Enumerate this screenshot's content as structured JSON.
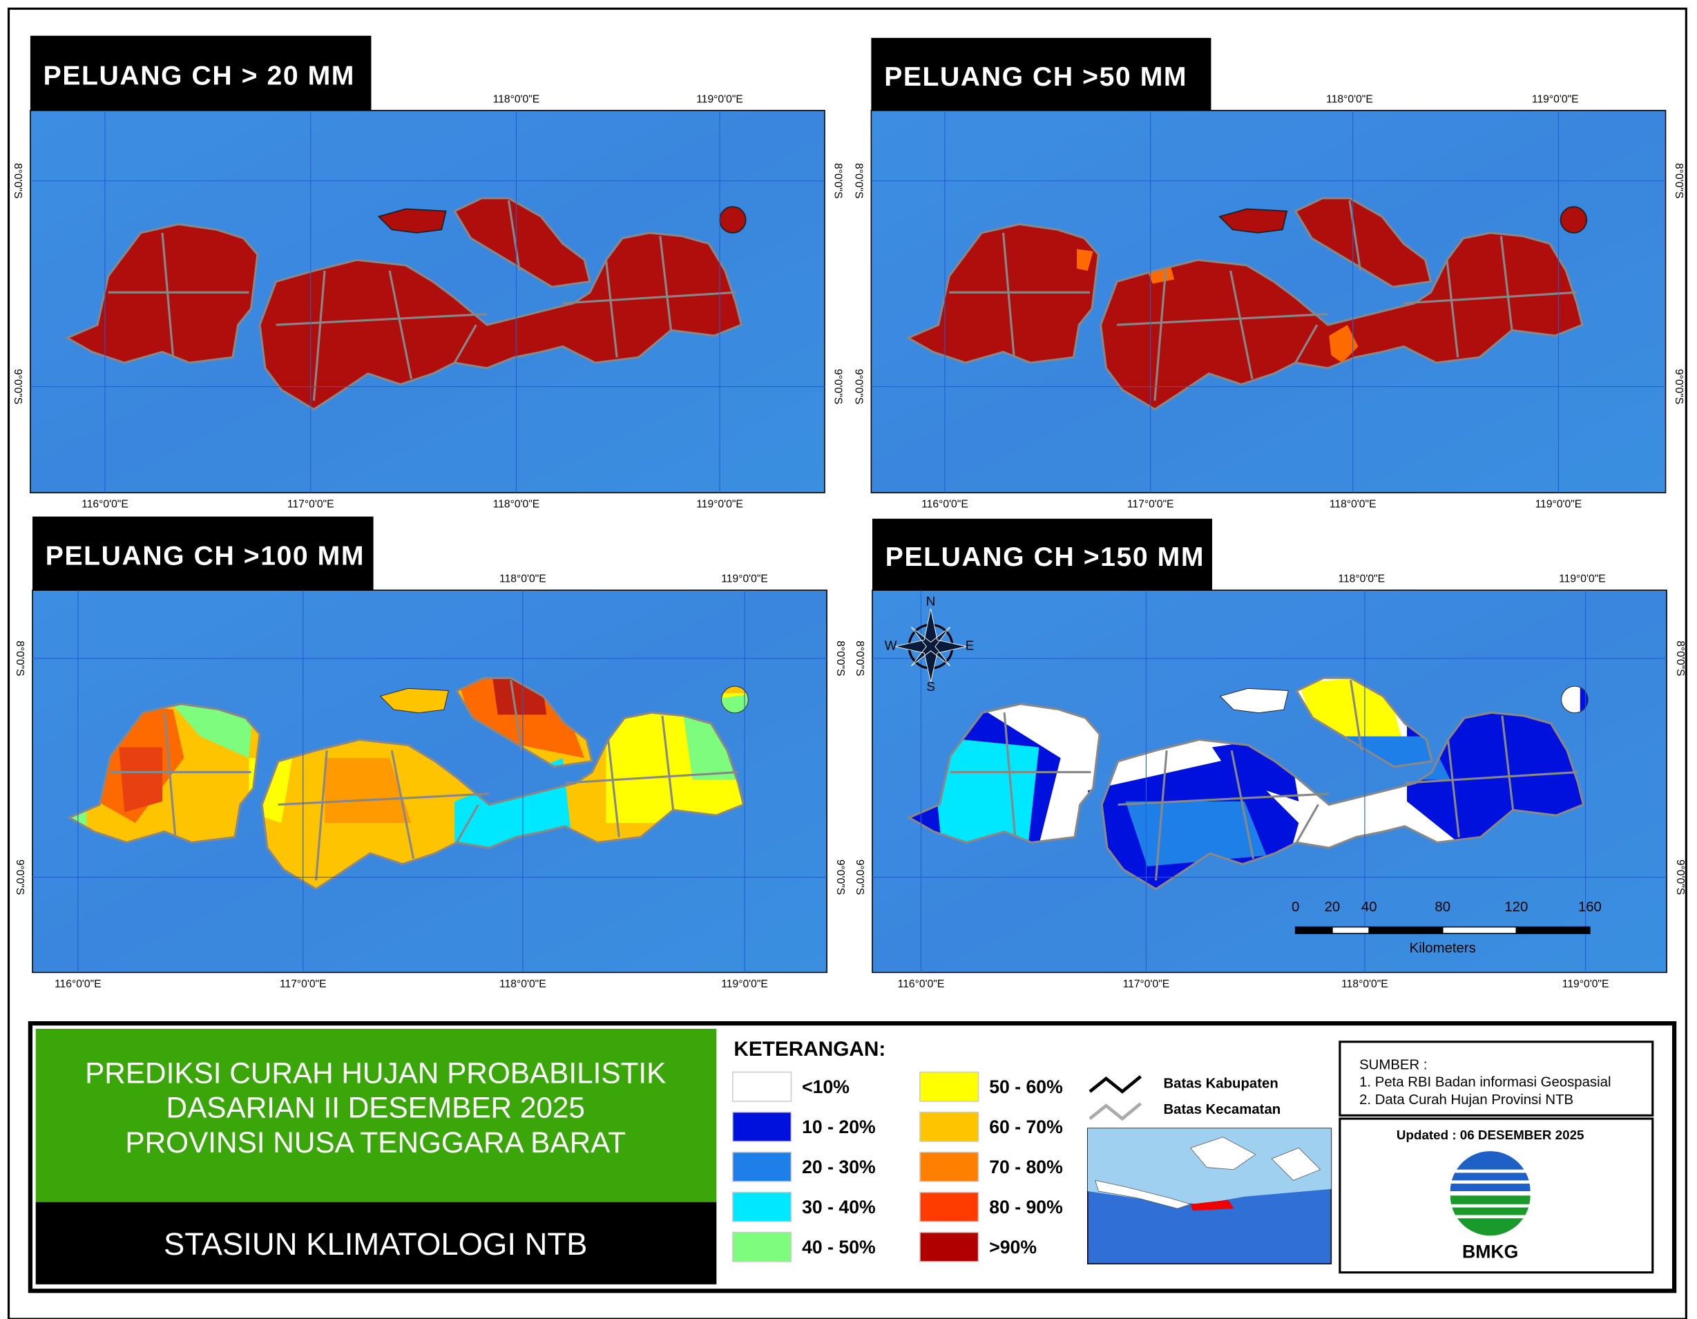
{
  "panels": [
    {
      "title": "PELUANG CH > 20 MM",
      "lon_top": [
        "118°0'0\"E",
        "119°0'0\"E"
      ],
      "lon_bottom": [
        "116°0'0\"E",
        "117°0'0\"E",
        "118°0'0\"E",
        "119°0'0\"E"
      ],
      "lat": [
        "8°0'0\"S",
        "9°0'0\"S"
      ]
    },
    {
      "title": "PELUANG CH >50 MM",
      "lon_top": [
        "118°0'0\"E",
        "119°0'0\"E"
      ],
      "lon_bottom": [
        "116°0'0\"E",
        "117°0'0\"E",
        "118°0'0\"E",
        "119°0'0\"E"
      ],
      "lat": [
        "8°0'0\"S",
        "9°0'0\"S"
      ]
    },
    {
      "title": "PELUANG CH >100 MM",
      "lon_top": [
        "118°0'0\"E",
        "119°0'0\"E"
      ],
      "lon_bottom": [
        "116°0'0\"E",
        "117°0'0\"E",
        "118°0'0\"E",
        "119°0'0\"E"
      ],
      "lat": [
        "8°0'0\"S",
        "9°0'0\"S"
      ]
    },
    {
      "title": "PELUANG CH >150 MM",
      "lon_top": [
        "118°0'0\"E",
        "119°0'0\"E"
      ],
      "lon_bottom": [
        "116°0'0\"E",
        "117°0'0\"E",
        "118°0'0\"E",
        "119°0'0\"E"
      ],
      "lat": [
        "8°0'0\"S",
        "9°0'0\"S"
      ]
    }
  ],
  "compass": {
    "n": "N",
    "s": "S",
    "w": "W",
    "e": "E"
  },
  "scale_bar": {
    "ticks": [
      0,
      20,
      40,
      80,
      120,
      160
    ],
    "unit": "Kilometers"
  },
  "title_block": {
    "lines": [
      "PREDIKSI CURAH HUJAN PROBABILISTIK",
      "DASARIAN  II DESEMBER 2025",
      "PROVINSI NUSA TENGGARA BARAT"
    ],
    "station": "STASIUN KLIMATOLOGI NTB"
  },
  "legend": {
    "title": "KETERANGAN:",
    "items": [
      {
        "label": "<10%",
        "color": "#ffffff"
      },
      {
        "label": "10 - 20%",
        "color": "#0010dd"
      },
      {
        "label": "20 - 30%",
        "color": "#1e7fe8"
      },
      {
        "label": "30 - 40%",
        "color": "#00e8ff"
      },
      {
        "label": "40 - 50%",
        "color": "#7dfc7d"
      },
      {
        "label": "50 - 60%",
        "color": "#ffff00"
      },
      {
        "label": "60 - 70%",
        "color": "#ffc400"
      },
      {
        "label": "70 - 80%",
        "color": "#ff7f00"
      },
      {
        "label": "80 - 90%",
        "color": "#ff3c00"
      },
      {
        "label": ">90%",
        "color": "#b00000"
      }
    ]
  },
  "boundaries": [
    {
      "label": "Batas Kabupaten"
    },
    {
      "label": "Batas Kecamatan"
    }
  ],
  "source": {
    "title": "SUMBER :",
    "items": [
      "1. Peta RBI Badan informasi Geospasial",
      "2. Data Curah Hujan Provinsi NTB"
    ]
  },
  "updated": "Updated : 06 DESEMBER 2025",
  "logo": "BMKG"
}
